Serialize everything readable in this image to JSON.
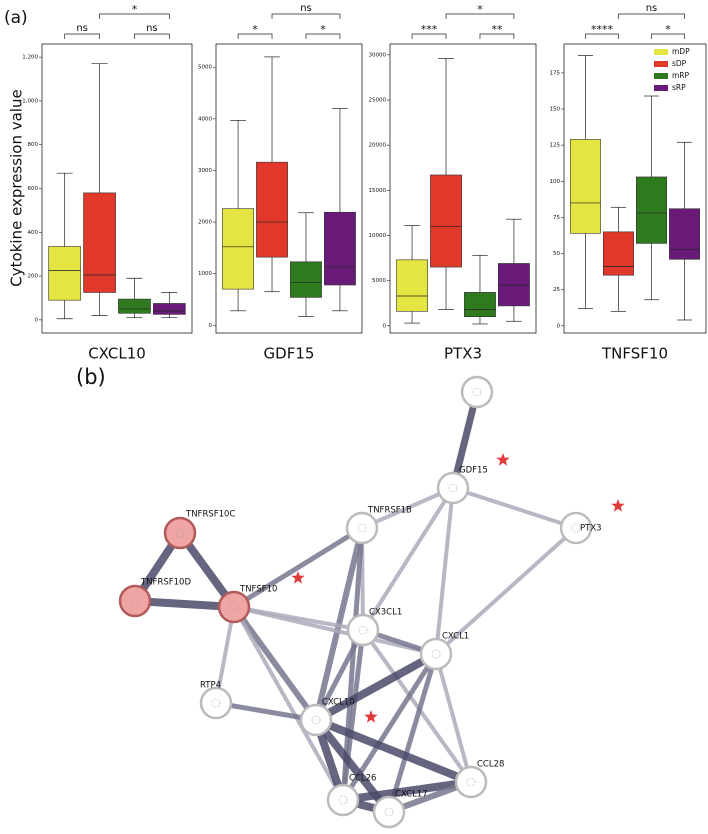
{
  "panel_labels": [
    "(a)",
    "(b)"
  ],
  "chart_data": [
    {
      "type": "box",
      "title": "CXCL10",
      "ylabel": "Cytokine expression value",
      "ylim": [
        -60,
        1260
      ],
      "yticks": [
        0,
        200,
        400,
        600,
        800,
        {
          "value": 1000,
          "label": "1,000"
        },
        {
          "value": 1200,
          "label": "1,200"
        }
      ],
      "series": [
        {
          "name": "mDP",
          "color": "#e4e442",
          "values": [
            5,
            90,
            225,
            335,
            670
          ]
        },
        {
          "name": "sDP",
          "color": "#e0392b",
          "values": [
            20,
            125,
            205,
            580,
            1170
          ]
        },
        {
          "name": "mRP",
          "color": "#2f7a1f",
          "values": [
            10,
            30,
            50,
            95,
            190
          ]
        },
        {
          "name": "sRP",
          "color": "#6a1b7a",
          "values": [
            10,
            25,
            40,
            75,
            125
          ]
        }
      ],
      "brackets": [
        {
          "from": "mDP",
          "to": "sDP",
          "label": "ns"
        },
        {
          "from": "mRP",
          "to": "sRP",
          "label": "ns"
        },
        {
          "from": "sDP",
          "to": "sRP",
          "label": "*"
        }
      ]
    },
    {
      "type": "box",
      "title": "GDF15",
      "ylim": [
        -150,
        5450
      ],
      "yticks": [
        0,
        1000,
        2000,
        3000,
        4000,
        5000
      ],
      "series": [
        {
          "name": "mDP",
          "color": "#e4e442",
          "values": [
            280,
            700,
            1520,
            2260,
            3970
          ]
        },
        {
          "name": "sDP",
          "color": "#e0392b",
          "values": [
            650,
            1320,
            2000,
            3160,
            5200
          ]
        },
        {
          "name": "mRP",
          "color": "#2f7a1f",
          "values": [
            170,
            540,
            830,
            1230,
            2180
          ]
        },
        {
          "name": "sRP",
          "color": "#6a1b7a",
          "values": [
            280,
            780,
            1130,
            2190,
            4200
          ]
        }
      ],
      "brackets": [
        {
          "from": "mDP",
          "to": "sDP",
          "label": "*"
        },
        {
          "from": "mRP",
          "to": "sRP",
          "label": "*"
        },
        {
          "from": "sDP",
          "to": "sRP",
          "label": "ns"
        }
      ]
    },
    {
      "type": "box",
      "title": "PTX3",
      "ylim": [
        -800,
        31200
      ],
      "yticks": [
        0,
        5000,
        10000,
        15000,
        20000,
        25000,
        30000
      ],
      "series": [
        {
          "name": "mDP",
          "color": "#e4e442",
          "values": [
            300,
            1600,
            3300,
            7300,
            11100
          ]
        },
        {
          "name": "sDP",
          "color": "#e0392b",
          "values": [
            1800,
            6500,
            11000,
            16700,
            29600
          ]
        },
        {
          "name": "mRP",
          "color": "#2f7a1f",
          "values": [
            200,
            1000,
            1800,
            3700,
            7800
          ]
        },
        {
          "name": "sRP",
          "color": "#6a1b7a",
          "values": [
            500,
            2200,
            4500,
            6900,
            11800
          ]
        }
      ],
      "brackets": [
        {
          "from": "mDP",
          "to": "sDP",
          "label": "***"
        },
        {
          "from": "mRP",
          "to": "sRP",
          "label": "**"
        },
        {
          "from": "sDP",
          "to": "sRP",
          "label": "*"
        }
      ]
    },
    {
      "type": "box",
      "title": "TNFSF10",
      "legend": "upper right",
      "ylim": [
        -5,
        195
      ],
      "yticks": [
        0,
        25,
        50,
        75,
        100,
        125,
        150,
        175
      ],
      "series": [
        {
          "name": "mDP",
          "color": "#e4e442",
          "values": [
            12,
            64,
            85,
            129,
            187
          ]
        },
        {
          "name": "sDP",
          "color": "#e0392b",
          "values": [
            10,
            35,
            41,
            65,
            82
          ]
        },
        {
          "name": "mRP",
          "color": "#2f7a1f",
          "values": [
            18,
            57,
            78,
            103,
            159
          ]
        },
        {
          "name": "sRP",
          "color": "#6a1b7a",
          "values": [
            4,
            46,
            53,
            81,
            127
          ]
        }
      ],
      "brackets": [
        {
          "from": "mDP",
          "to": "sDP",
          "label": "****"
        },
        {
          "from": "mRP",
          "to": "sRP",
          "label": "*"
        },
        {
          "from": "sDP",
          "to": "sRP",
          "label": "ns"
        }
      ]
    }
  ],
  "network": {
    "nodes": [
      {
        "label": null
      },
      {
        "label": "GDF15",
        "star": true
      },
      {
        "label": "PTX3",
        "star": true
      },
      {
        "label": "TNFRSF1B"
      },
      {
        "label": "TNFRSF10C",
        "highlight": true
      },
      {
        "label": "TNFRSF10D",
        "highlight": true
      },
      {
        "label": "TNFSF10",
        "highlight": true,
        "star": true
      },
      {
        "label": "CX3CL1"
      },
      {
        "label": "CXCL1"
      },
      {
        "label": "CXCL10",
        "star": true
      },
      {
        "label": "RTP4"
      },
      {
        "label": "CCL28"
      },
      {
        "label": "CCL26"
      },
      {
        "label": "CXCL17"
      }
    ]
  }
}
